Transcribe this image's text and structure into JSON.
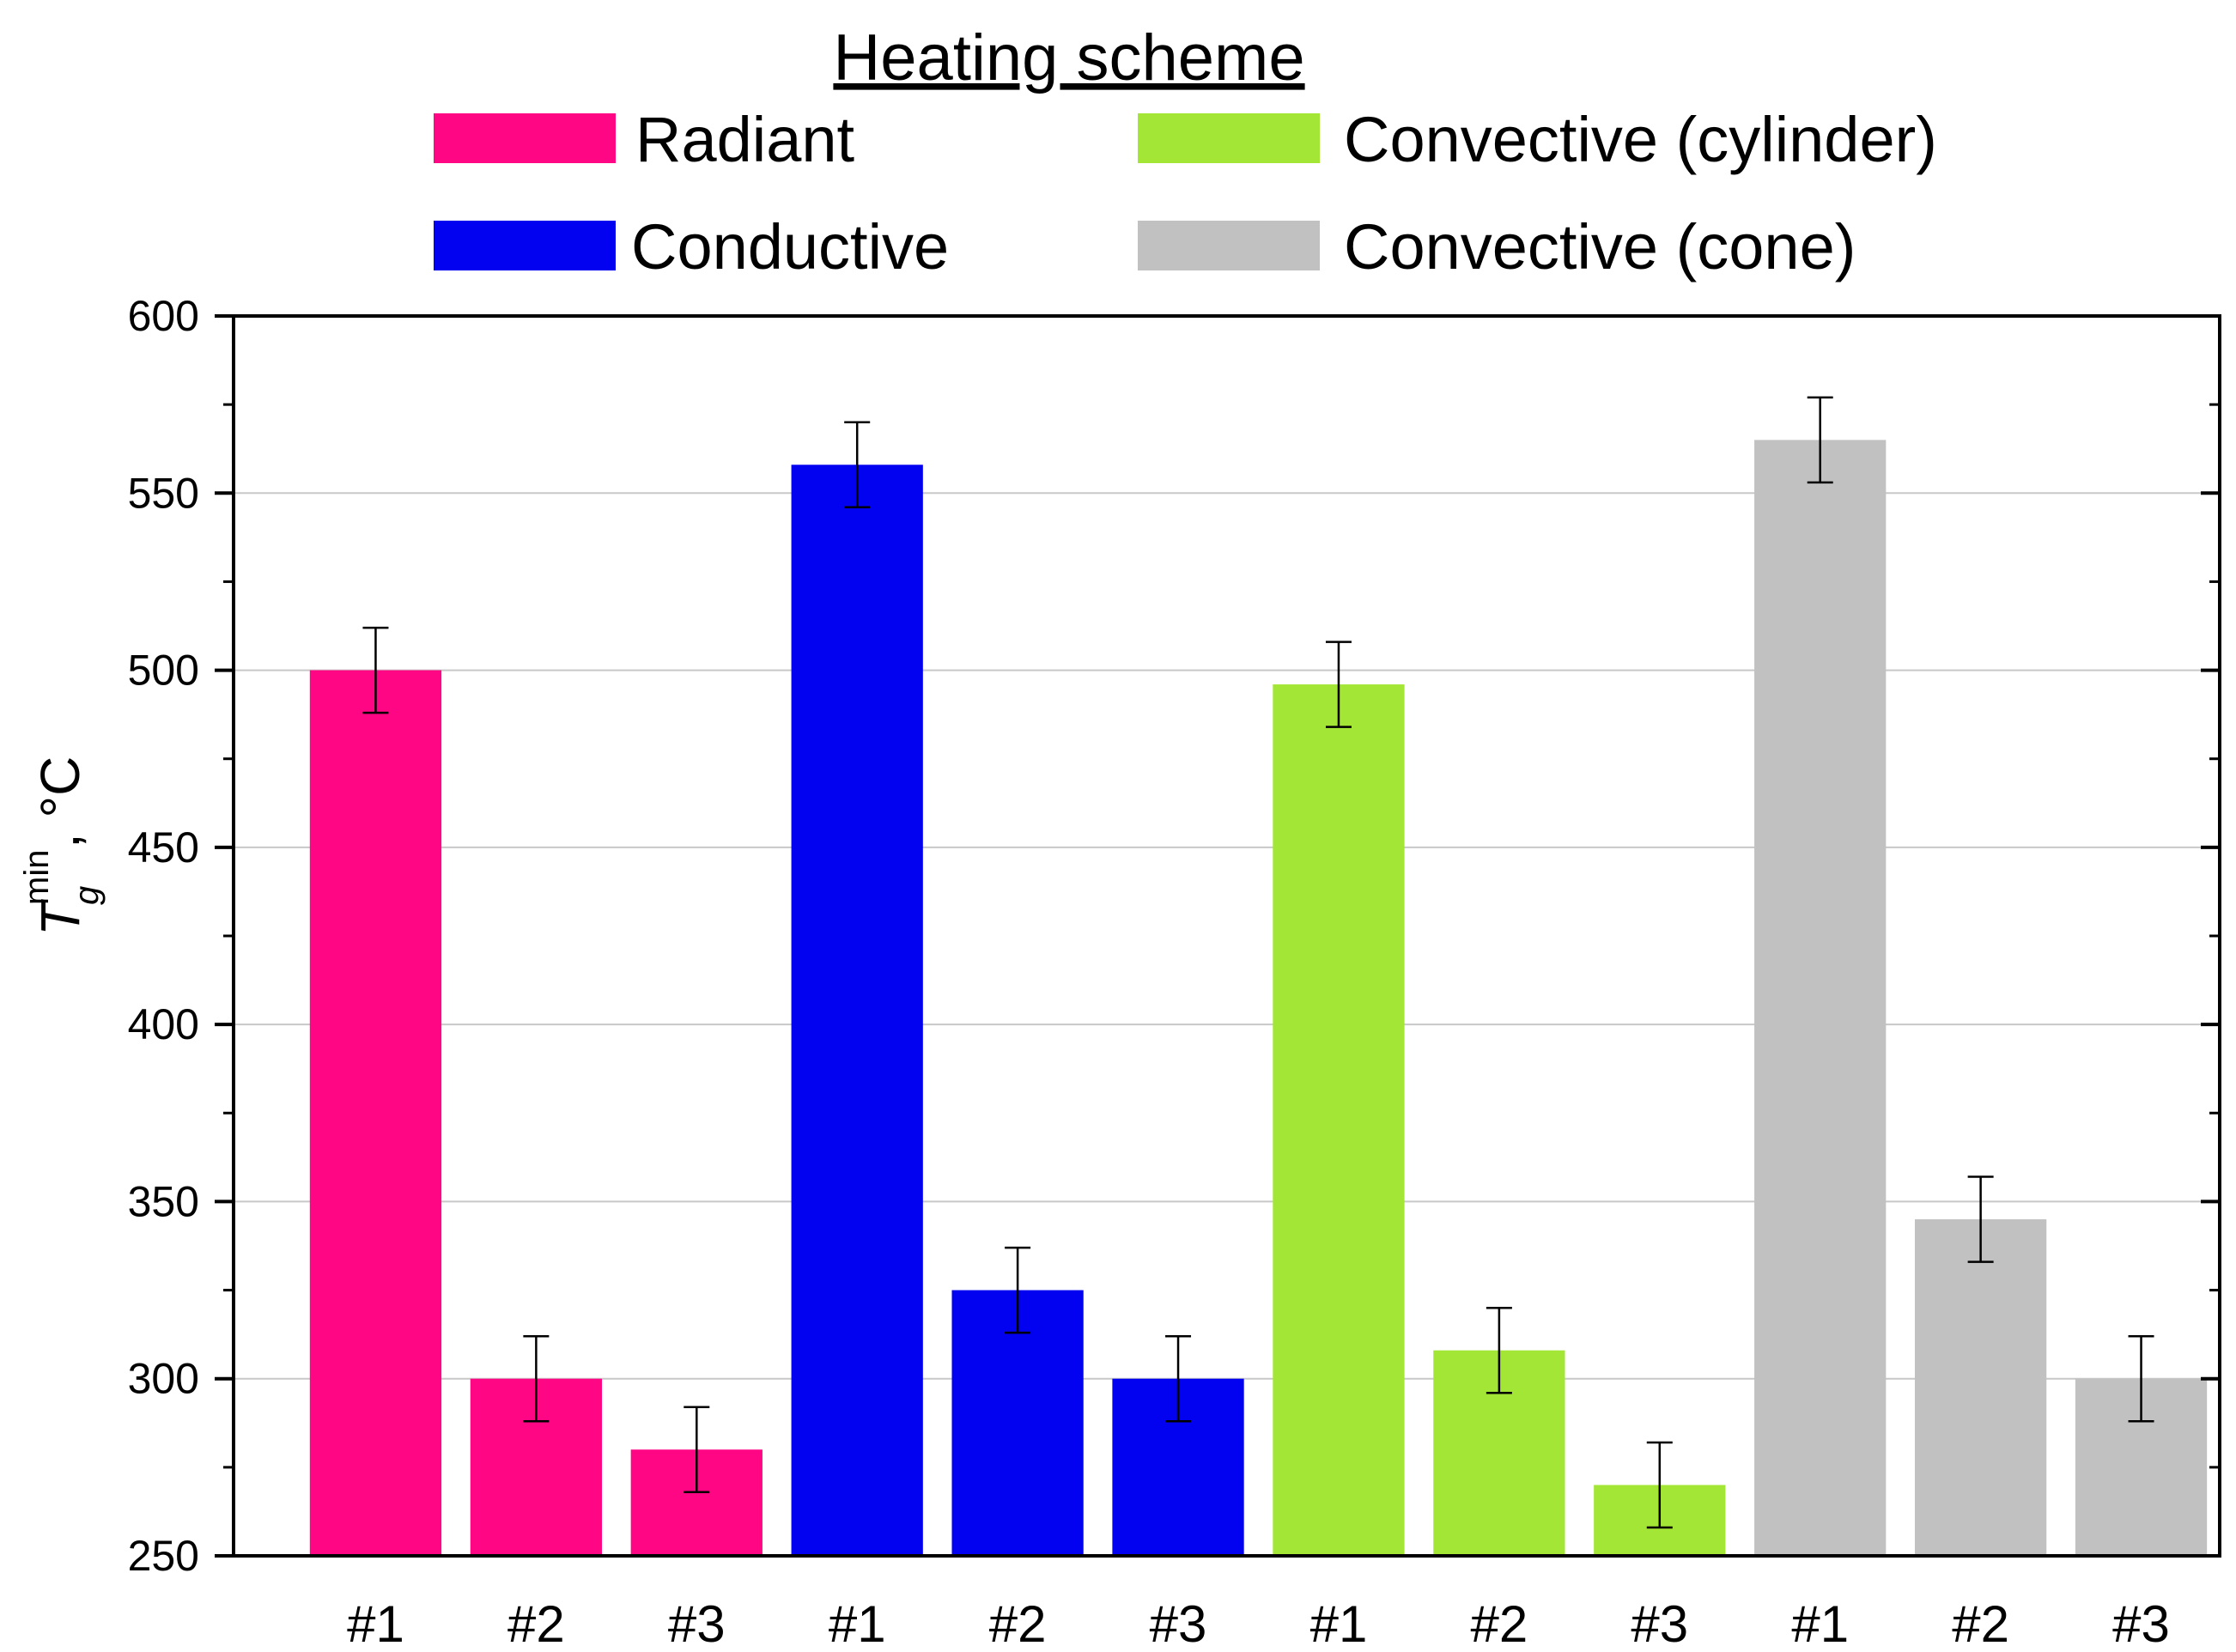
{
  "chart_data": {
    "type": "bar",
    "title": "",
    "legend_title": "Heating scheme",
    "xlabel": "",
    "ylabel": {
      "symbol": "T",
      "subscript": "g",
      "superscript": "min",
      "unit": ", °C"
    },
    "ylim": [
      250,
      600
    ],
    "yticks": [
      "250",
      "300",
      "350",
      "400",
      "450",
      "500",
      "550",
      "600"
    ],
    "ytick_values": [
      250,
      300,
      350,
      400,
      450,
      500,
      550,
      600
    ],
    "grid": true,
    "legend_position": "top",
    "series": [
      {
        "name": "Radiant",
        "color": "#ff0784",
        "categories": [
          "#1",
          "#2",
          "#3"
        ],
        "values": [
          500,
          300,
          280
        ],
        "errors": [
          12,
          12,
          12
        ]
      },
      {
        "name": "Conductive",
        "color": "#0202f0",
        "categories": [
          "#1",
          "#2",
          "#3"
        ],
        "values": [
          558,
          325,
          300
        ],
        "errors": [
          12,
          12,
          12
        ]
      },
      {
        "name": "Convective (cylinder)",
        "color": "#a4e636",
        "categories": [
          "#1",
          "#2",
          "#3"
        ],
        "values": [
          496,
          308,
          270
        ],
        "errors": [
          12,
          12,
          12
        ]
      },
      {
        "name": "Convective (cone)",
        "color": "#c1c1c1",
        "categories": [
          "#1",
          "#2",
          "#3"
        ],
        "values": [
          565,
          345,
          300
        ],
        "errors": [
          12,
          12,
          12
        ]
      }
    ]
  }
}
